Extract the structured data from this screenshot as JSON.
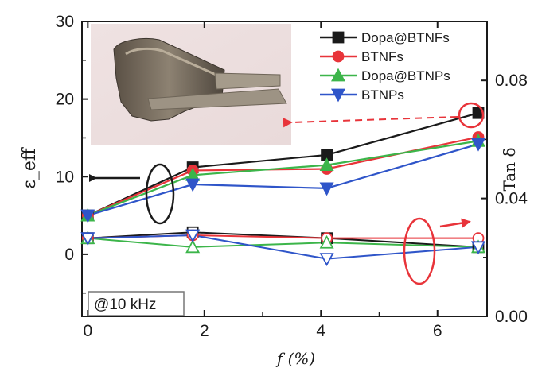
{
  "chart_data": {
    "type": "line",
    "title": "",
    "xlabel": "f (%)",
    "ylabel_left": "ε_eff",
    "ylabel_right": "Tan δ",
    "xlim": [
      -0.1,
      6.85
    ],
    "ylim_left": [
      -8,
      30
    ],
    "ylim_right": [
      0.0,
      0.1
    ],
    "x_ticks": [
      "0",
      "2",
      "4",
      "6"
    ],
    "y_left_ticks": [
      "0",
      "10",
      "20",
      "30"
    ],
    "y_right_ticks": [
      "0.00",
      "0.04",
      "0.08"
    ],
    "annotation": "@10 kHz",
    "legend_position": "top-right",
    "x": [
      0,
      1.8,
      4.1,
      6.7
    ],
    "series": [
      {
        "name": "Dopa@BTNFs",
        "color": "#1a1a1a",
        "marker": "square",
        "axis": "left",
        "values": [
          5,
          11.2,
          12.8,
          18.2
        ],
        "tan_delta": [
          0.0265,
          0.0285,
          0.0265,
          0.0235
        ]
      },
      {
        "name": "BTNFs",
        "color": "#e8343a",
        "marker": "circle",
        "axis": "left",
        "values": [
          5,
          10.8,
          11.0,
          15.1
        ],
        "tan_delta": [
          0.0265,
          0.0275,
          0.0265,
          0.0265
        ]
      },
      {
        "name": "Dopa@BTNPs",
        "color": "#3cb54a",
        "marker": "triangle-up",
        "axis": "left",
        "values": [
          5,
          10.2,
          11.5,
          14.6
        ],
        "tan_delta": [
          0.0265,
          0.0235,
          0.025,
          0.0235
        ]
      },
      {
        "name": "BTNPs",
        "color": "#2f55c9",
        "marker": "triangle-down",
        "axis": "left",
        "values": [
          5,
          9.0,
          8.5,
          14.2
        ],
        "tan_delta": [
          0.0265,
          0.0275,
          0.0195,
          0.0235
        ]
      }
    ]
  }
}
